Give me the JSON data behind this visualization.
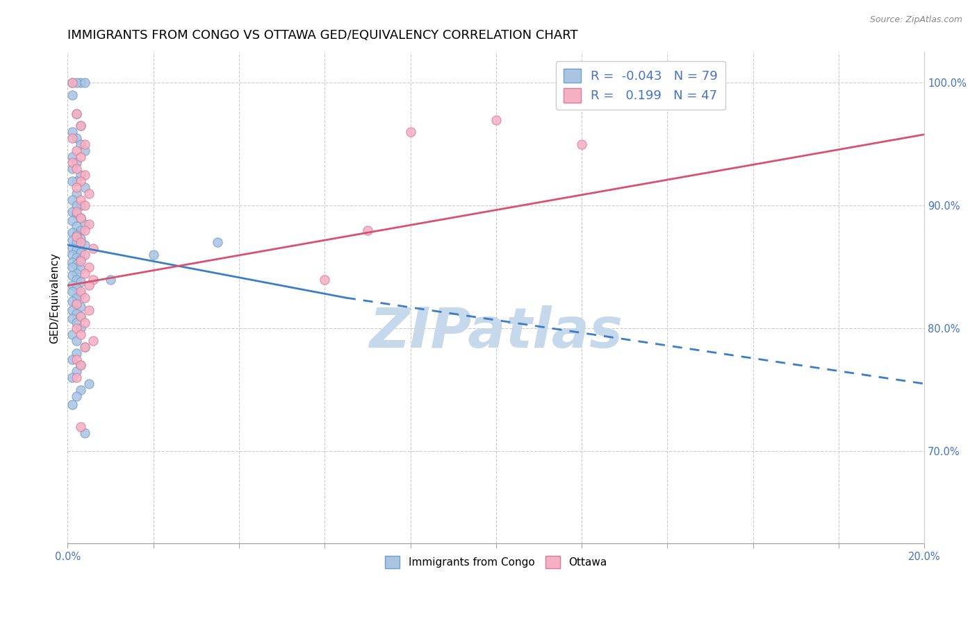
{
  "title": "IMMIGRANTS FROM CONGO VS OTTAWA GED/EQUIVALENCY CORRELATION CHART",
  "source": "Source: ZipAtlas.com",
  "ylabel": "GED/Equivalency",
  "xlim": [
    0.0,
    0.2
  ],
  "ylim": [
    0.625,
    1.025
  ],
  "right_yticks": [
    0.7,
    0.8,
    0.9,
    1.0
  ],
  "right_yticklabels": [
    "70.0%",
    "80.0%",
    "90.0%",
    "100.0%"
  ],
  "xtick_positions": [
    0.0,
    0.02,
    0.04,
    0.06,
    0.08,
    0.1,
    0.12,
    0.14,
    0.16,
    0.18,
    0.2
  ],
  "blue_R": -0.043,
  "blue_N": 79,
  "pink_R": 0.199,
  "pink_N": 47,
  "blue_color": "#aac4e2",
  "blue_edge": "#6fa0cc",
  "pink_color": "#f5b0c2",
  "pink_edge": "#e07898",
  "blue_line_color": "#3a7dc9",
  "pink_line_color": "#d95070",
  "blue_scatter_x": [
    0.001,
    0.003,
    0.002,
    0.004,
    0.001,
    0.002,
    0.003,
    0.001,
    0.002,
    0.003,
    0.004,
    0.001,
    0.002,
    0.001,
    0.003,
    0.002,
    0.001,
    0.004,
    0.002,
    0.001,
    0.003,
    0.002,
    0.001,
    0.002,
    0.003,
    0.001,
    0.004,
    0.002,
    0.003,
    0.001,
    0.002,
    0.003,
    0.001,
    0.002,
    0.004,
    0.001,
    0.002,
    0.003,
    0.001,
    0.002,
    0.003,
    0.001,
    0.002,
    0.001,
    0.003,
    0.002,
    0.001,
    0.002,
    0.003,
    0.001,
    0.002,
    0.001,
    0.003,
    0.002,
    0.001,
    0.002,
    0.003,
    0.001,
    0.002,
    0.003,
    0.001,
    0.002,
    0.003,
    0.001,
    0.002,
    0.004,
    0.002,
    0.001,
    0.003,
    0.002,
    0.001,
    0.005,
    0.003,
    0.002,
    0.001,
    0.035,
    0.01,
    0.02,
    0.004
  ],
  "blue_scatter_y": [
    1.0,
    1.0,
    1.0,
    1.0,
    0.99,
    0.975,
    0.965,
    0.96,
    0.955,
    0.95,
    0.945,
    0.94,
    0.935,
    0.93,
    0.925,
    0.92,
    0.92,
    0.915,
    0.91,
    0.905,
    0.9,
    0.9,
    0.895,
    0.893,
    0.89,
    0.888,
    0.885,
    0.883,
    0.88,
    0.878,
    0.876,
    0.873,
    0.872,
    0.87,
    0.868,
    0.865,
    0.864,
    0.862,
    0.86,
    0.858,
    0.856,
    0.854,
    0.852,
    0.85,
    0.848,
    0.845,
    0.843,
    0.84,
    0.838,
    0.835,
    0.833,
    0.83,
    0.828,
    0.825,
    0.822,
    0.82,
    0.818,
    0.815,
    0.812,
    0.81,
    0.808,
    0.805,
    0.8,
    0.795,
    0.79,
    0.785,
    0.78,
    0.775,
    0.77,
    0.765,
    0.76,
    0.755,
    0.75,
    0.745,
    0.738,
    0.87,
    0.84,
    0.86,
    0.715
  ],
  "pink_scatter_x": [
    0.001,
    0.002,
    0.003,
    0.001,
    0.004,
    0.002,
    0.003,
    0.001,
    0.002,
    0.004,
    0.003,
    0.002,
    0.005,
    0.003,
    0.004,
    0.002,
    0.003,
    0.005,
    0.004,
    0.002,
    0.003,
    0.006,
    0.004,
    0.003,
    0.005,
    0.004,
    0.006,
    0.005,
    0.003,
    0.004,
    0.002,
    0.005,
    0.003,
    0.004,
    0.002,
    0.003,
    0.006,
    0.004,
    0.002,
    0.003,
    0.08,
    0.1,
    0.07,
    0.12,
    0.06,
    0.003,
    0.002
  ],
  "pink_scatter_y": [
    1.0,
    0.975,
    0.965,
    0.955,
    0.95,
    0.945,
    0.94,
    0.935,
    0.93,
    0.925,
    0.92,
    0.915,
    0.91,
    0.905,
    0.9,
    0.895,
    0.89,
    0.885,
    0.88,
    0.875,
    0.87,
    0.865,
    0.86,
    0.855,
    0.85,
    0.845,
    0.84,
    0.835,
    0.83,
    0.825,
    0.82,
    0.815,
    0.81,
    0.805,
    0.8,
    0.795,
    0.79,
    0.785,
    0.775,
    0.77,
    0.96,
    0.97,
    0.88,
    0.95,
    0.84,
    0.72,
    0.76
  ],
  "blue_line_x0": 0.0,
  "blue_line_x_break": 0.065,
  "blue_line_x1": 0.2,
  "blue_line_y0": 0.868,
  "blue_line_y_break": 0.825,
  "blue_line_y1": 0.755,
  "pink_line_x0": 0.0,
  "pink_line_x1": 0.2,
  "pink_line_y0": 0.835,
  "pink_line_y1": 0.958,
  "watermark": "ZIPatlas",
  "watermark_color": "#c5d8ec",
  "title_fontsize": 13,
  "label_fontsize": 11,
  "tick_fontsize": 10.5,
  "legend_fontsize": 13
}
